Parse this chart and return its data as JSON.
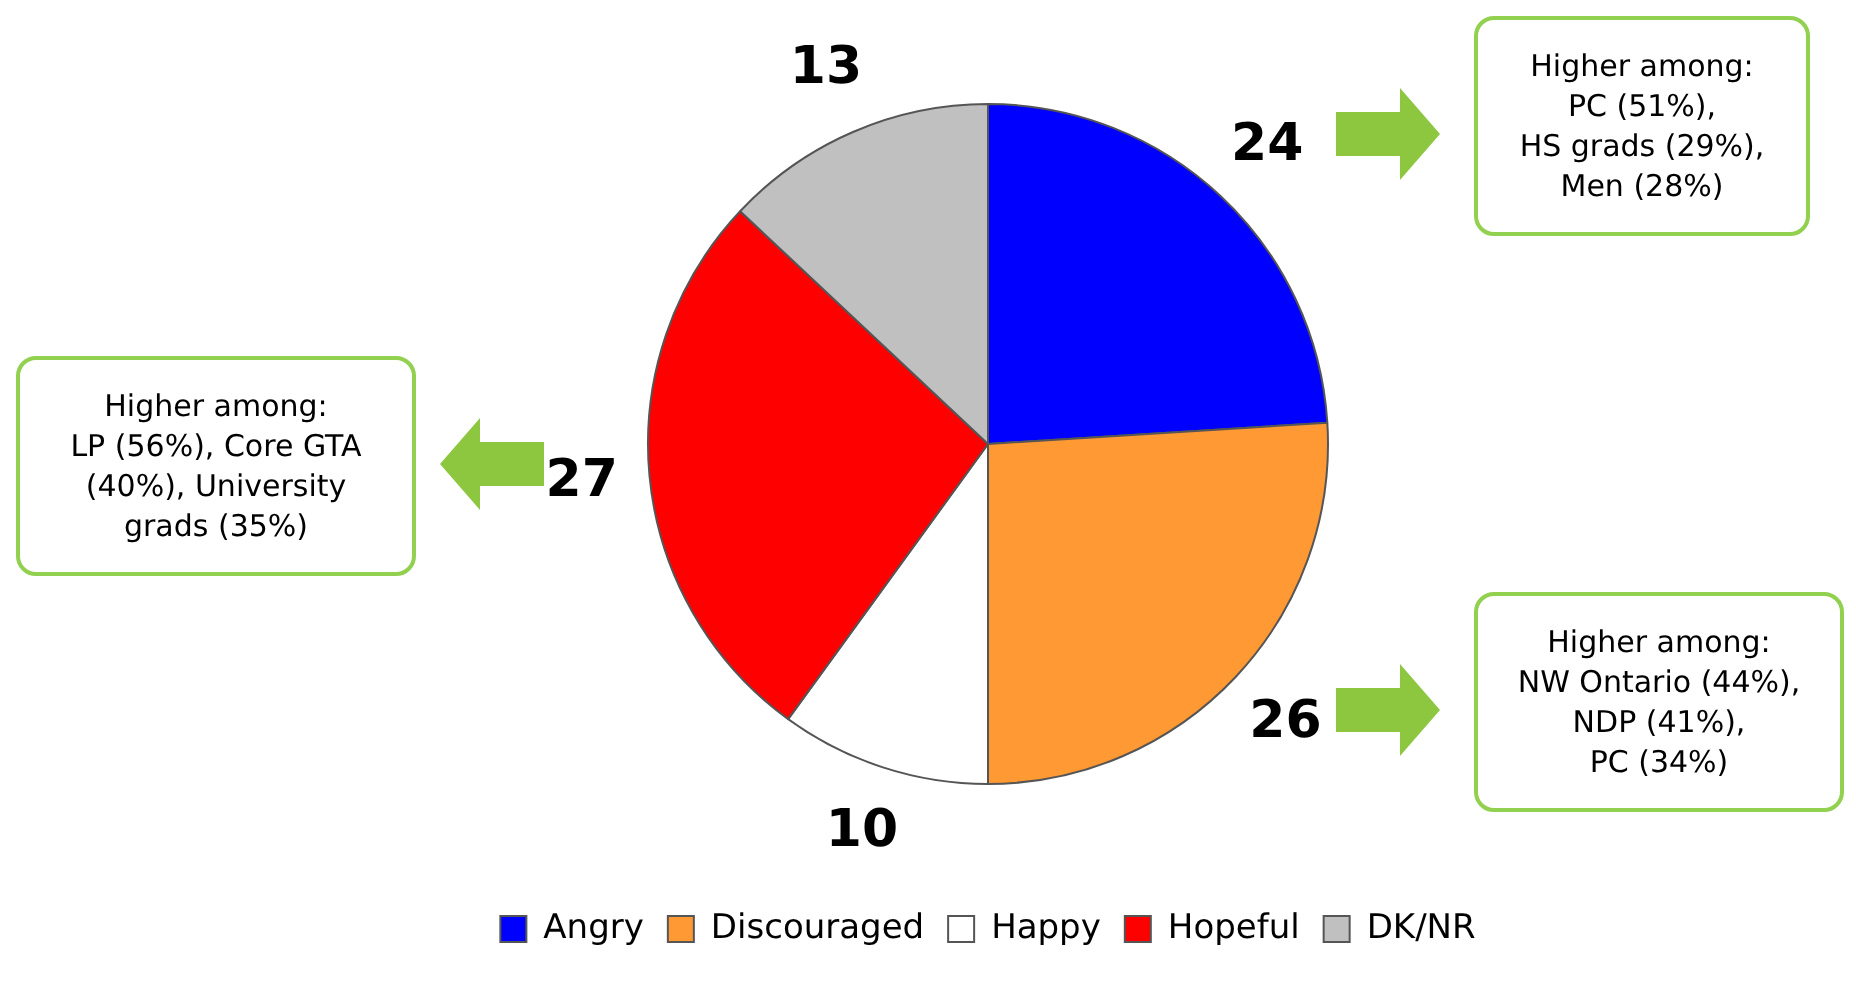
{
  "chart_data": {
    "type": "pie",
    "categories": [
      "Angry",
      "Discouraged",
      "Happy",
      "Hopeful",
      "DK/NR"
    ],
    "values": [
      24,
      26,
      10,
      27,
      13
    ],
    "colors": [
      "#0000ff",
      "#ff9933",
      "#ffffff",
      "#ff0000",
      "#c0c0c0"
    ],
    "data_labels": true,
    "legend": "bottom",
    "annotations": [
      "Higher among:\nPC (51%),\nHS grads (29%),\nMen (28%)",
      "Higher among:\nLP (56%), Core GTA\n(40%), University\ngrads (35%)",
      "Higher among:\nNW Ontario (44%),\nNDP (41%),\nPC (34%)"
    ]
  }
}
